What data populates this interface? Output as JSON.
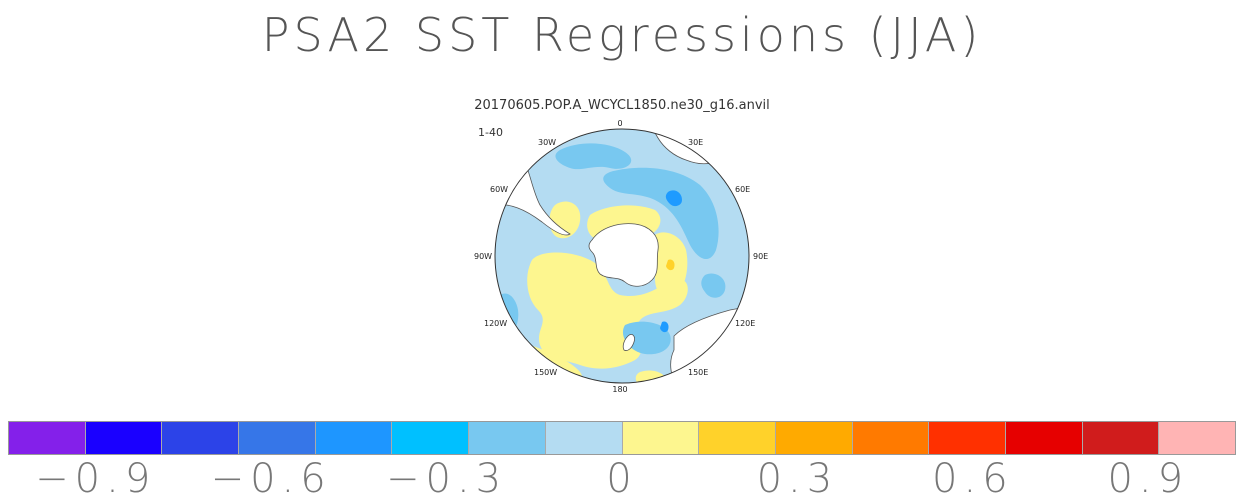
{
  "title": "PSA2 SST Regressions (JJA)",
  "subtitle": "20170605.POP.A_WCYCL1850.ne30_g16.anvil",
  "panel_label": "1-40",
  "map": {
    "projection": "south-polar-stereographic",
    "longitude_labels": [
      "0",
      "30E",
      "60E",
      "90E",
      "120E",
      "150E",
      "180",
      "150W",
      "120W",
      "90W",
      "60W",
      "30W"
    ],
    "colors": {
      "ocean_base": "#b4dcf2",
      "positive_weak": "#fdf68f",
      "negative_mid": "#78c8f0",
      "negative_strong": "#1e9bff",
      "land": "#ffffff",
      "positive_mid": "#ffd22a"
    }
  },
  "colorbar": {
    "colors": [
      "#8420ea",
      "#1a00ff",
      "#2c43e8",
      "#3676e8",
      "#1e96ff",
      "#00c0ff",
      "#78c8f0",
      "#b4dcf2",
      "#fdf68f",
      "#ffd22a",
      "#ffaa00",
      "#ff7a00",
      "#ff3000",
      "#e60000",
      "#d01c1c",
      "#ffb4b4"
    ],
    "tick_labels": [
      "−0.9",
      "−0.6",
      "−0.3",
      "0",
      "0.3",
      "0.6",
      "0.9"
    ],
    "tick_values": [
      -0.9,
      -0.6,
      -0.3,
      0,
      0.3,
      0.6,
      0.9
    ],
    "range": [
      -1.05,
      1.05
    ]
  }
}
